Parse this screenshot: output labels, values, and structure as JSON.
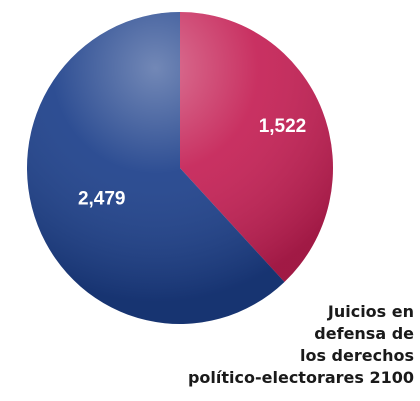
{
  "chart_data": {
    "type": "pie",
    "title": "",
    "slices": [
      {
        "label": "",
        "value": 1522,
        "display": "1,522",
        "color": "#c41f54"
      },
      {
        "label": "",
        "value": 2479,
        "display": "2,479",
        "color": "#1c3f8a"
      }
    ],
    "start_angle_deg": 0,
    "direction": "clockwise",
    "legend": "none"
  },
  "caption": {
    "lines": [
      "Juicios en",
      "defensa de",
      "los derechos",
      "político-electorares 2100"
    ]
  },
  "colors": {
    "background": "#ffffff",
    "caption_text": "#1a1a1a"
  }
}
